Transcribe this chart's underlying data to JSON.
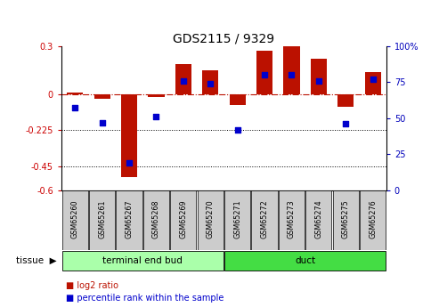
{
  "title": "GDS2115 / 9329",
  "samples": [
    "GSM65260",
    "GSM65261",
    "GSM65267",
    "GSM65268",
    "GSM65269",
    "GSM65270",
    "GSM65271",
    "GSM65272",
    "GSM65273",
    "GSM65274",
    "GSM65275",
    "GSM65276"
  ],
  "log2_ratio": [
    0.01,
    -0.03,
    -0.52,
    -0.02,
    0.19,
    0.15,
    -0.07,
    0.27,
    0.3,
    0.22,
    -0.08,
    0.14
  ],
  "percentile_rank": [
    57,
    47,
    19,
    51,
    76,
    74,
    42,
    80,
    80,
    76,
    46,
    77
  ],
  "groups": [
    {
      "label": "terminal end bud",
      "start": 0,
      "end": 6,
      "color": "#aaffaa"
    },
    {
      "label": "duct",
      "start": 6,
      "end": 12,
      "color": "#44dd44"
    }
  ],
  "tissue_label": "tissue",
  "ylim_left": [
    -0.6,
    0.3
  ],
  "ylim_right": [
    0,
    100
  ],
  "yticks_left": [
    -0.6,
    -0.45,
    -0.225,
    0.0,
    0.3
  ],
  "yticks_right": [
    0,
    25,
    50,
    75,
    100
  ],
  "dotted_lines": [
    -0.225,
    -0.45
  ],
  "bar_color": "#BB1100",
  "dot_color": "#0000CC",
  "bar_width": 0.6,
  "legend_items": [
    {
      "color": "#BB1100",
      "label": "log2 ratio"
    },
    {
      "color": "#0000CC",
      "label": "percentile rank within the sample"
    }
  ],
  "right_tick_color": "#0000BB",
  "left_tick_color": "#CC0000"
}
